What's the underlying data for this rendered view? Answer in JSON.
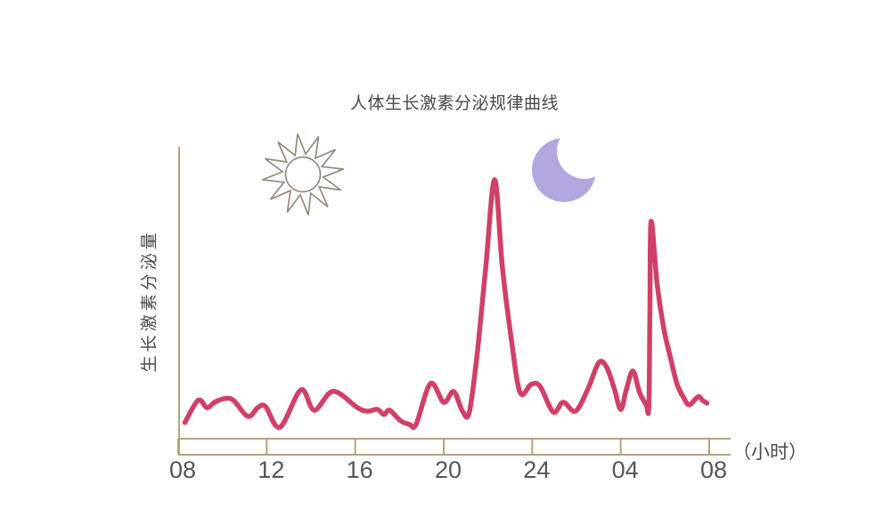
{
  "chart_data": {
    "type": "line",
    "title": "人体生长激素分泌规律曲线",
    "xlabel": "（小时）",
    "ylabel": "生长激素分泌量",
    "x_ticks": [
      {
        "hour": 8,
        "label": "08"
      },
      {
        "hour": 12,
        "label": "12"
      },
      {
        "hour": 16,
        "label": "16"
      },
      {
        "hour": 20,
        "label": "20"
      },
      {
        "hour": 24,
        "label": "24"
      },
      {
        "hour": 28,
        "label": "04"
      },
      {
        "hour": 32,
        "label": "08"
      }
    ],
    "xlim_hours": [
      8,
      32
    ],
    "ylim": [
      0,
      105
    ],
    "grid": false,
    "legend": "none",
    "annotations": [
      {
        "name": "sun-icon",
        "meaning": "daytime",
        "position_hour": 13.6
      },
      {
        "name": "moon-icon",
        "meaning": "night",
        "position_hour": 25.4
      }
    ],
    "series": [
      {
        "name": "生长激素分泌量",
        "color": "#d04068",
        "points": [
          [
            8.3,
            5.9
          ],
          [
            8.9,
            14.5
          ],
          [
            9.3,
            11.7
          ],
          [
            9.65,
            13.8
          ],
          [
            10.1,
            15.2
          ],
          [
            10.5,
            14.5
          ],
          [
            11.15,
            8.3
          ],
          [
            11.6,
            11.7
          ],
          [
            11.95,
            12.1
          ],
          [
            12.6,
            4.1
          ],
          [
            13.55,
            18.6
          ],
          [
            14.15,
            10.7
          ],
          [
            15.0,
            18.0
          ],
          [
            16.1,
            11.7
          ],
          [
            16.55,
            10.3
          ],
          [
            17.0,
            11.0
          ],
          [
            17.3,
            9.0
          ],
          [
            17.55,
            10.7
          ],
          [
            18.05,
            6.6
          ],
          [
            18.45,
            5.2
          ],
          [
            18.75,
            5.2
          ],
          [
            19.4,
            21.0
          ],
          [
            20.0,
            13.8
          ],
          [
            20.45,
            17.9
          ],
          [
            20.85,
            10.3
          ],
          [
            21.15,
            9.7
          ],
          [
            21.5,
            31.7
          ],
          [
            21.9,
            66.2
          ],
          [
            22.3,
            100.0
          ],
          [
            22.65,
            66.2
          ],
          [
            23.05,
            38.6
          ],
          [
            23.45,
            17.6
          ],
          [
            23.95,
            20.7
          ],
          [
            24.35,
            20.0
          ],
          [
            24.95,
            10.0
          ],
          [
            25.4,
            13.8
          ],
          [
            25.95,
            10.3
          ],
          [
            26.5,
            18.6
          ],
          [
            27.0,
            29.0
          ],
          [
            27.35,
            27.6
          ],
          [
            27.7,
            19.3
          ],
          [
            28.0,
            11.0
          ],
          [
            28.25,
            18.6
          ],
          [
            28.55,
            25.9
          ],
          [
            28.85,
            17.6
          ],
          [
            29.15,
            12.8
          ],
          [
            29.27,
            12.1
          ],
          [
            29.32,
            49.0
          ],
          [
            29.37,
            83.8
          ],
          [
            29.65,
            59.3
          ],
          [
            29.95,
            42.1
          ],
          [
            30.25,
            31.0
          ],
          [
            30.55,
            20.7
          ],
          [
            30.85,
            15.5
          ],
          [
            31.1,
            12.8
          ],
          [
            31.5,
            15.9
          ],
          [
            31.7,
            14.5
          ],
          [
            31.9,
            13.4
          ]
        ]
      }
    ]
  },
  "colors": {
    "background": "#ffffff",
    "curve": "#d04068",
    "axis": "#b5a478",
    "title_text": "#4a4a4a",
    "tick_text": "#565656",
    "moon": "#b2a7de",
    "sun_outline": "#97897c"
  }
}
